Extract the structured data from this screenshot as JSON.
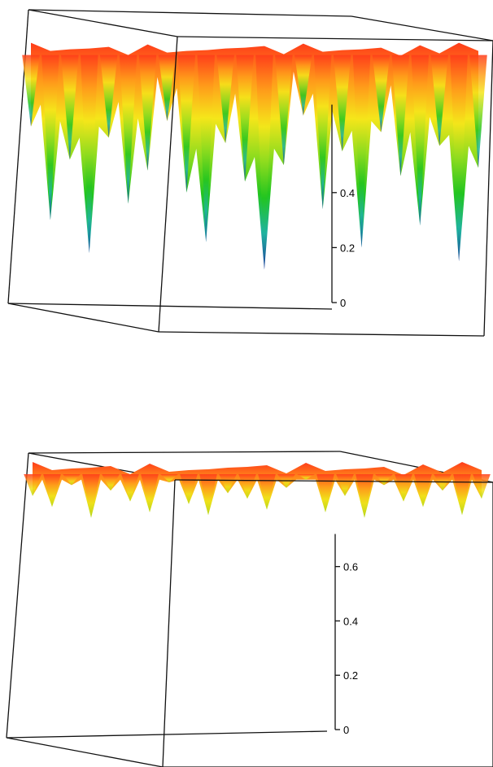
{
  "chart_data": [
    {
      "type": "surface3d",
      "title": "",
      "zlabel": "",
      "zticks": [
        "0",
        "0.2",
        "0.4"
      ],
      "zlim": [
        0,
        1
      ],
      "grid": false,
      "legend": "none",
      "colormap": [
        "#1a3a9a",
        "#1fb3a0",
        "#22c51f",
        "#8fdc1e",
        "#f5e61a",
        "#ff9a1a",
        "#ff3b1a"
      ],
      "base_level": 0.93,
      "spike_depth": [
        0.64,
        0.3,
        0.52,
        0.18,
        0.6,
        0.36,
        0.48,
        0.66,
        0.4,
        0.22,
        0.58,
        0.44,
        0.12,
        0.5,
        0.68,
        0.34,
        0.55,
        0.2,
        0.62,
        0.46,
        0.28,
        0.57,
        0.15,
        0.49
      ]
    },
    {
      "type": "surface3d",
      "title": "",
      "zlabel": "",
      "zticks": [
        "0.6",
        "0.4",
        "0.2",
        "0"
      ],
      "zlim": [
        0,
        1
      ],
      "grid": false,
      "legend": "none",
      "colormap": [
        "#b5d61c",
        "#f0e11a",
        "#ff9a1a",
        "#ff3b1a"
      ],
      "base_level": 0.97,
      "spike_depth": [
        0.86,
        0.82,
        0.9,
        0.78,
        0.88,
        0.84,
        0.8,
        0.91,
        0.83,
        0.79,
        0.87,
        0.85,
        0.81,
        0.89,
        0.92,
        0.8,
        0.86,
        0.78,
        0.9,
        0.84,
        0.82,
        0.88,
        0.79,
        0.85
      ]
    }
  ]
}
